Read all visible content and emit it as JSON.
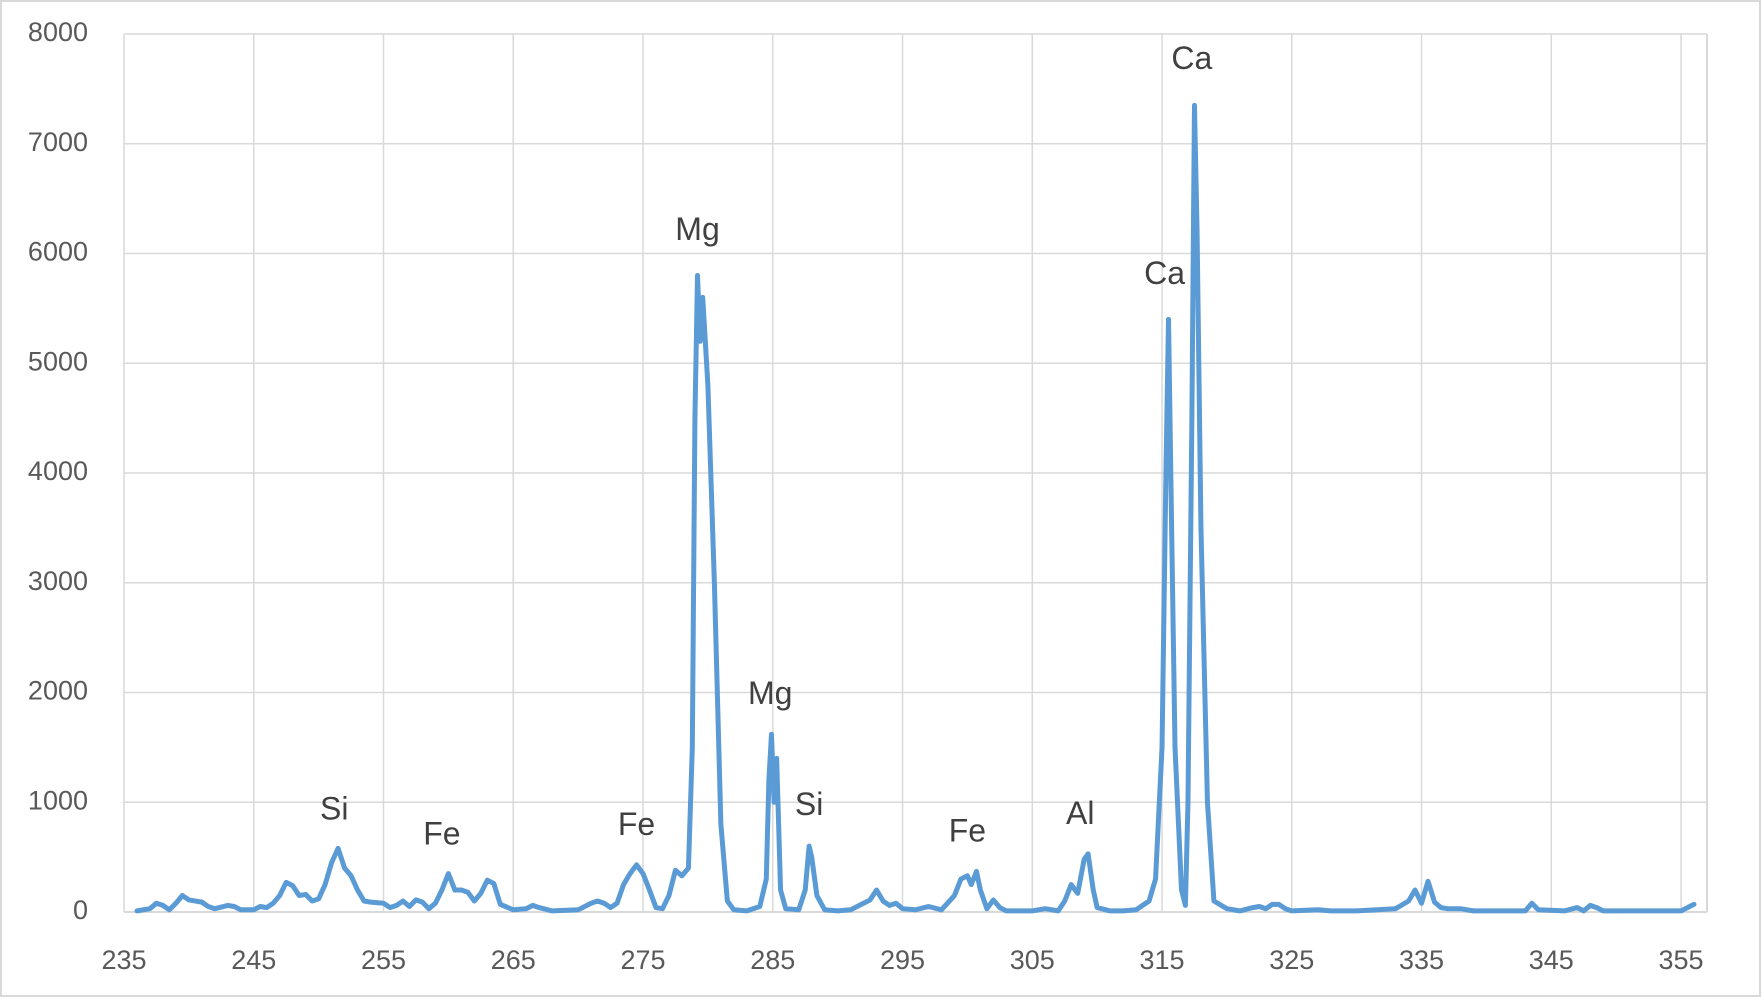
{
  "chart_data": {
    "type": "line",
    "x": [
      236,
      237,
      237.5,
      238,
      238.5,
      239,
      239.5,
      240,
      241,
      241.5,
      242,
      243,
      243.5,
      244,
      245,
      245.5,
      246,
      246.5,
      247,
      247.5,
      248,
      248.5,
      249,
      249.5,
      250,
      250.5,
      251,
      251.5,
      252,
      252.5,
      253,
      253.5,
      254,
      255,
      255.5,
      256,
      256.5,
      257,
      257.5,
      258,
      258.5,
      259,
      259.5,
      260,
      260.5,
      261,
      261.5,
      262,
      262.5,
      263,
      263.5,
      264,
      265,
      266,
      266.5,
      267,
      268,
      270,
      271,
      271.5,
      272,
      272.5,
      273,
      273.5,
      274,
      274.5,
      275,
      275.5,
      276,
      276.5,
      277,
      277.5,
      278,
      278.5,
      278.8,
      279,
      279.2,
      279.4,
      279.6,
      280,
      280.5,
      281,
      281.5,
      282,
      283,
      284,
      284.5,
      284.7,
      284.9,
      285.1,
      285.3,
      285.6,
      286,
      287,
      287.5,
      287.8,
      288,
      288.4,
      289,
      290,
      291,
      292,
      292.5,
      293,
      293.5,
      294,
      294.5,
      295,
      296,
      297,
      298,
      299,
      299.5,
      300,
      300.3,
      300.7,
      301,
      301.5,
      302,
      302.5,
      303,
      305,
      306,
      307,
      307.5,
      308,
      308.5,
      309,
      309.3,
      309.7,
      310,
      311,
      312,
      313,
      314,
      314.5,
      315,
      315.3,
      315.5,
      315.7,
      316,
      316.5,
      316.8,
      317,
      317.3,
      317.5,
      317.7,
      318,
      318.5,
      319,
      320,
      321,
      322,
      322.5,
      323,
      323.5,
      324,
      324.5,
      325,
      327,
      328,
      330,
      333,
      334,
      334.5,
      335,
      335.5,
      336,
      336.5,
      337,
      338,
      339,
      343,
      343.5,
      344,
      346,
      347,
      347.5,
      348,
      348.5,
      349,
      352,
      355,
      356
    ],
    "values": [
      10,
      30,
      80,
      60,
      20,
      80,
      150,
      110,
      90,
      50,
      30,
      60,
      50,
      20,
      20,
      50,
      40,
      80,
      150,
      270,
      240,
      150,
      160,
      100,
      120,
      250,
      450,
      580,
      400,
      330,
      200,
      100,
      90,
      80,
      40,
      60,
      100,
      50,
      110,
      90,
      30,
      80,
      200,
      350,
      200,
      200,
      180,
      100,
      170,
      290,
      260,
      70,
      20,
      30,
      60,
      40,
      10,
      20,
      80,
      100,
      80,
      40,
      80,
      250,
      350,
      430,
      350,
      200,
      40,
      30,
      150,
      380,
      330,
      400,
      1500,
      4500,
      5800,
      5200,
      5600,
      4800,
      3000,
      800,
      100,
      20,
      10,
      50,
      300,
      1200,
      1620,
      1000,
      1400,
      200,
      30,
      20,
      200,
      600,
      500,
      150,
      20,
      10,
      20,
      80,
      110,
      200,
      100,
      60,
      80,
      30,
      20,
      50,
      20,
      150,
      300,
      330,
      250,
      370,
      200,
      30,
      110,
      40,
      10,
      10,
      30,
      10,
      100,
      250,
      170,
      480,
      530,
      200,
      40,
      10,
      10,
      20,
      100,
      300,
      1500,
      4000,
      5400,
      3800,
      1500,
      200,
      60,
      1000,
      4500,
      7350,
      6200,
      3500,
      1000,
      100,
      30,
      10,
      40,
      50,
      30,
      70,
      70,
      30,
      10,
      20,
      10,
      10,
      30,
      100,
      200,
      80,
      280,
      90,
      40,
      30,
      30,
      10,
      10,
      80,
      20,
      10,
      40,
      10,
      60,
      40,
      10,
      10,
      10,
      70
    ],
    "color": "#5b9bd5",
    "xlim": [
      235,
      357
    ],
    "ylim": [
      0,
      8000
    ],
    "xticks": [
      235,
      245,
      255,
      265,
      275,
      285,
      295,
      305,
      315,
      325,
      335,
      345,
      355
    ],
    "yticks": [
      0,
      1000,
      2000,
      3000,
      4000,
      5000,
      6000,
      7000,
      8000
    ],
    "grid": true,
    "annotations": [
      "Si",
      "Fe",
      "Fe",
      "Mg",
      "Mg",
      "Si",
      "Fe",
      "Al",
      "Ca",
      "Ca"
    ]
  }
}
